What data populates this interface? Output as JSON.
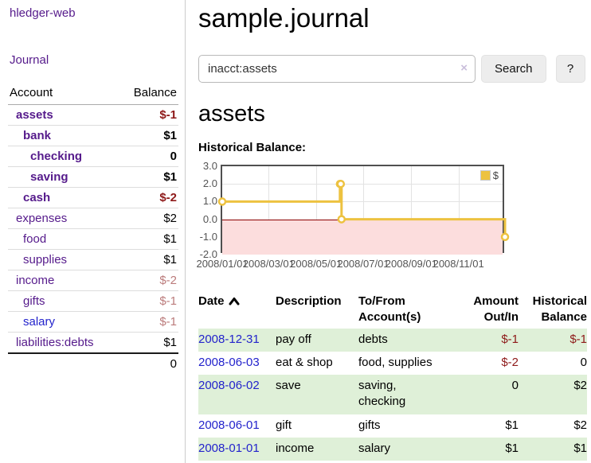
{
  "sidebar": {
    "app_title": "hledger-web",
    "journal_link": "Journal",
    "accounts": {
      "headers": {
        "account": "Account",
        "balance": "Balance"
      },
      "rows": [
        {
          "name": "assets",
          "balance": "$-1"
        },
        {
          "name": "bank",
          "balance": "$1"
        },
        {
          "name": "checking",
          "balance": "0"
        },
        {
          "name": "saving",
          "balance": "$1"
        },
        {
          "name": "cash",
          "balance": "$-2"
        },
        {
          "name": "expenses",
          "balance": "$2"
        },
        {
          "name": "food",
          "balance": "$1"
        },
        {
          "name": "supplies",
          "balance": "$1"
        },
        {
          "name": "income",
          "balance": "$-2"
        },
        {
          "name": "gifts",
          "balance": "$-1"
        },
        {
          "name": "salary",
          "balance": "$-1"
        },
        {
          "name": "liabilities:debts",
          "balance": "$1"
        }
      ],
      "total": "0"
    }
  },
  "header": {
    "title": "sample.journal"
  },
  "search": {
    "value": "inacct:assets",
    "clear_icon": "×",
    "button_label": "Search",
    "help_label": "?"
  },
  "account_page": {
    "heading": "assets",
    "chart_title": "Historical Balance:"
  },
  "chart_data": {
    "type": "line",
    "step": true,
    "series": [
      {
        "name": "$",
        "x": [
          "2008-01-01",
          "2008-06-01",
          "2008-06-02",
          "2008-06-03",
          "2008-12-31"
        ],
        "values": [
          1,
          2,
          2,
          0,
          -1
        ]
      }
    ],
    "title": "Historical Balance:",
    "xlabel": "",
    "ylabel": "",
    "ylim": [
      -2,
      3
    ],
    "xrange": [
      "2008-01-01",
      "2009-01-01"
    ],
    "yticks": [
      "3.0",
      "2.0",
      "1.0",
      "0.0",
      "-1.0",
      "-2.0"
    ],
    "xticks": [
      "2008/01/01",
      "2008/03/01",
      "2008/05/01",
      "2008/07/01",
      "2008/09/01",
      "2008/11/01"
    ],
    "grid": true,
    "legend_position": "top-right",
    "line_color": "#edc240",
    "negative_region_color": "#fcdddd",
    "zero_line_color": "#8b0000"
  },
  "transactions": {
    "headers": {
      "date": "Date",
      "description": "Description",
      "accounts": "To/From Account(s)",
      "amount": "Amount Out/In",
      "balance": "Historical Balance"
    },
    "rows": [
      {
        "date": "2008-12-31",
        "description": "pay off",
        "accounts": "debts",
        "amount": "$-1",
        "balance": "$-1"
      },
      {
        "date": "2008-06-03",
        "description": "eat & shop",
        "accounts": "food, supplies",
        "amount": "$-2",
        "balance": "0"
      },
      {
        "date": "2008-06-02",
        "description": "save",
        "accounts": "saving, checking",
        "amount": "0",
        "balance": "$2"
      },
      {
        "date": "2008-06-01",
        "description": "gift",
        "accounts": "gifts",
        "amount": "$1",
        "balance": "$2"
      },
      {
        "date": "2008-01-01",
        "description": "income",
        "accounts": "salary",
        "amount": "$1",
        "balance": "$1"
      }
    ]
  }
}
